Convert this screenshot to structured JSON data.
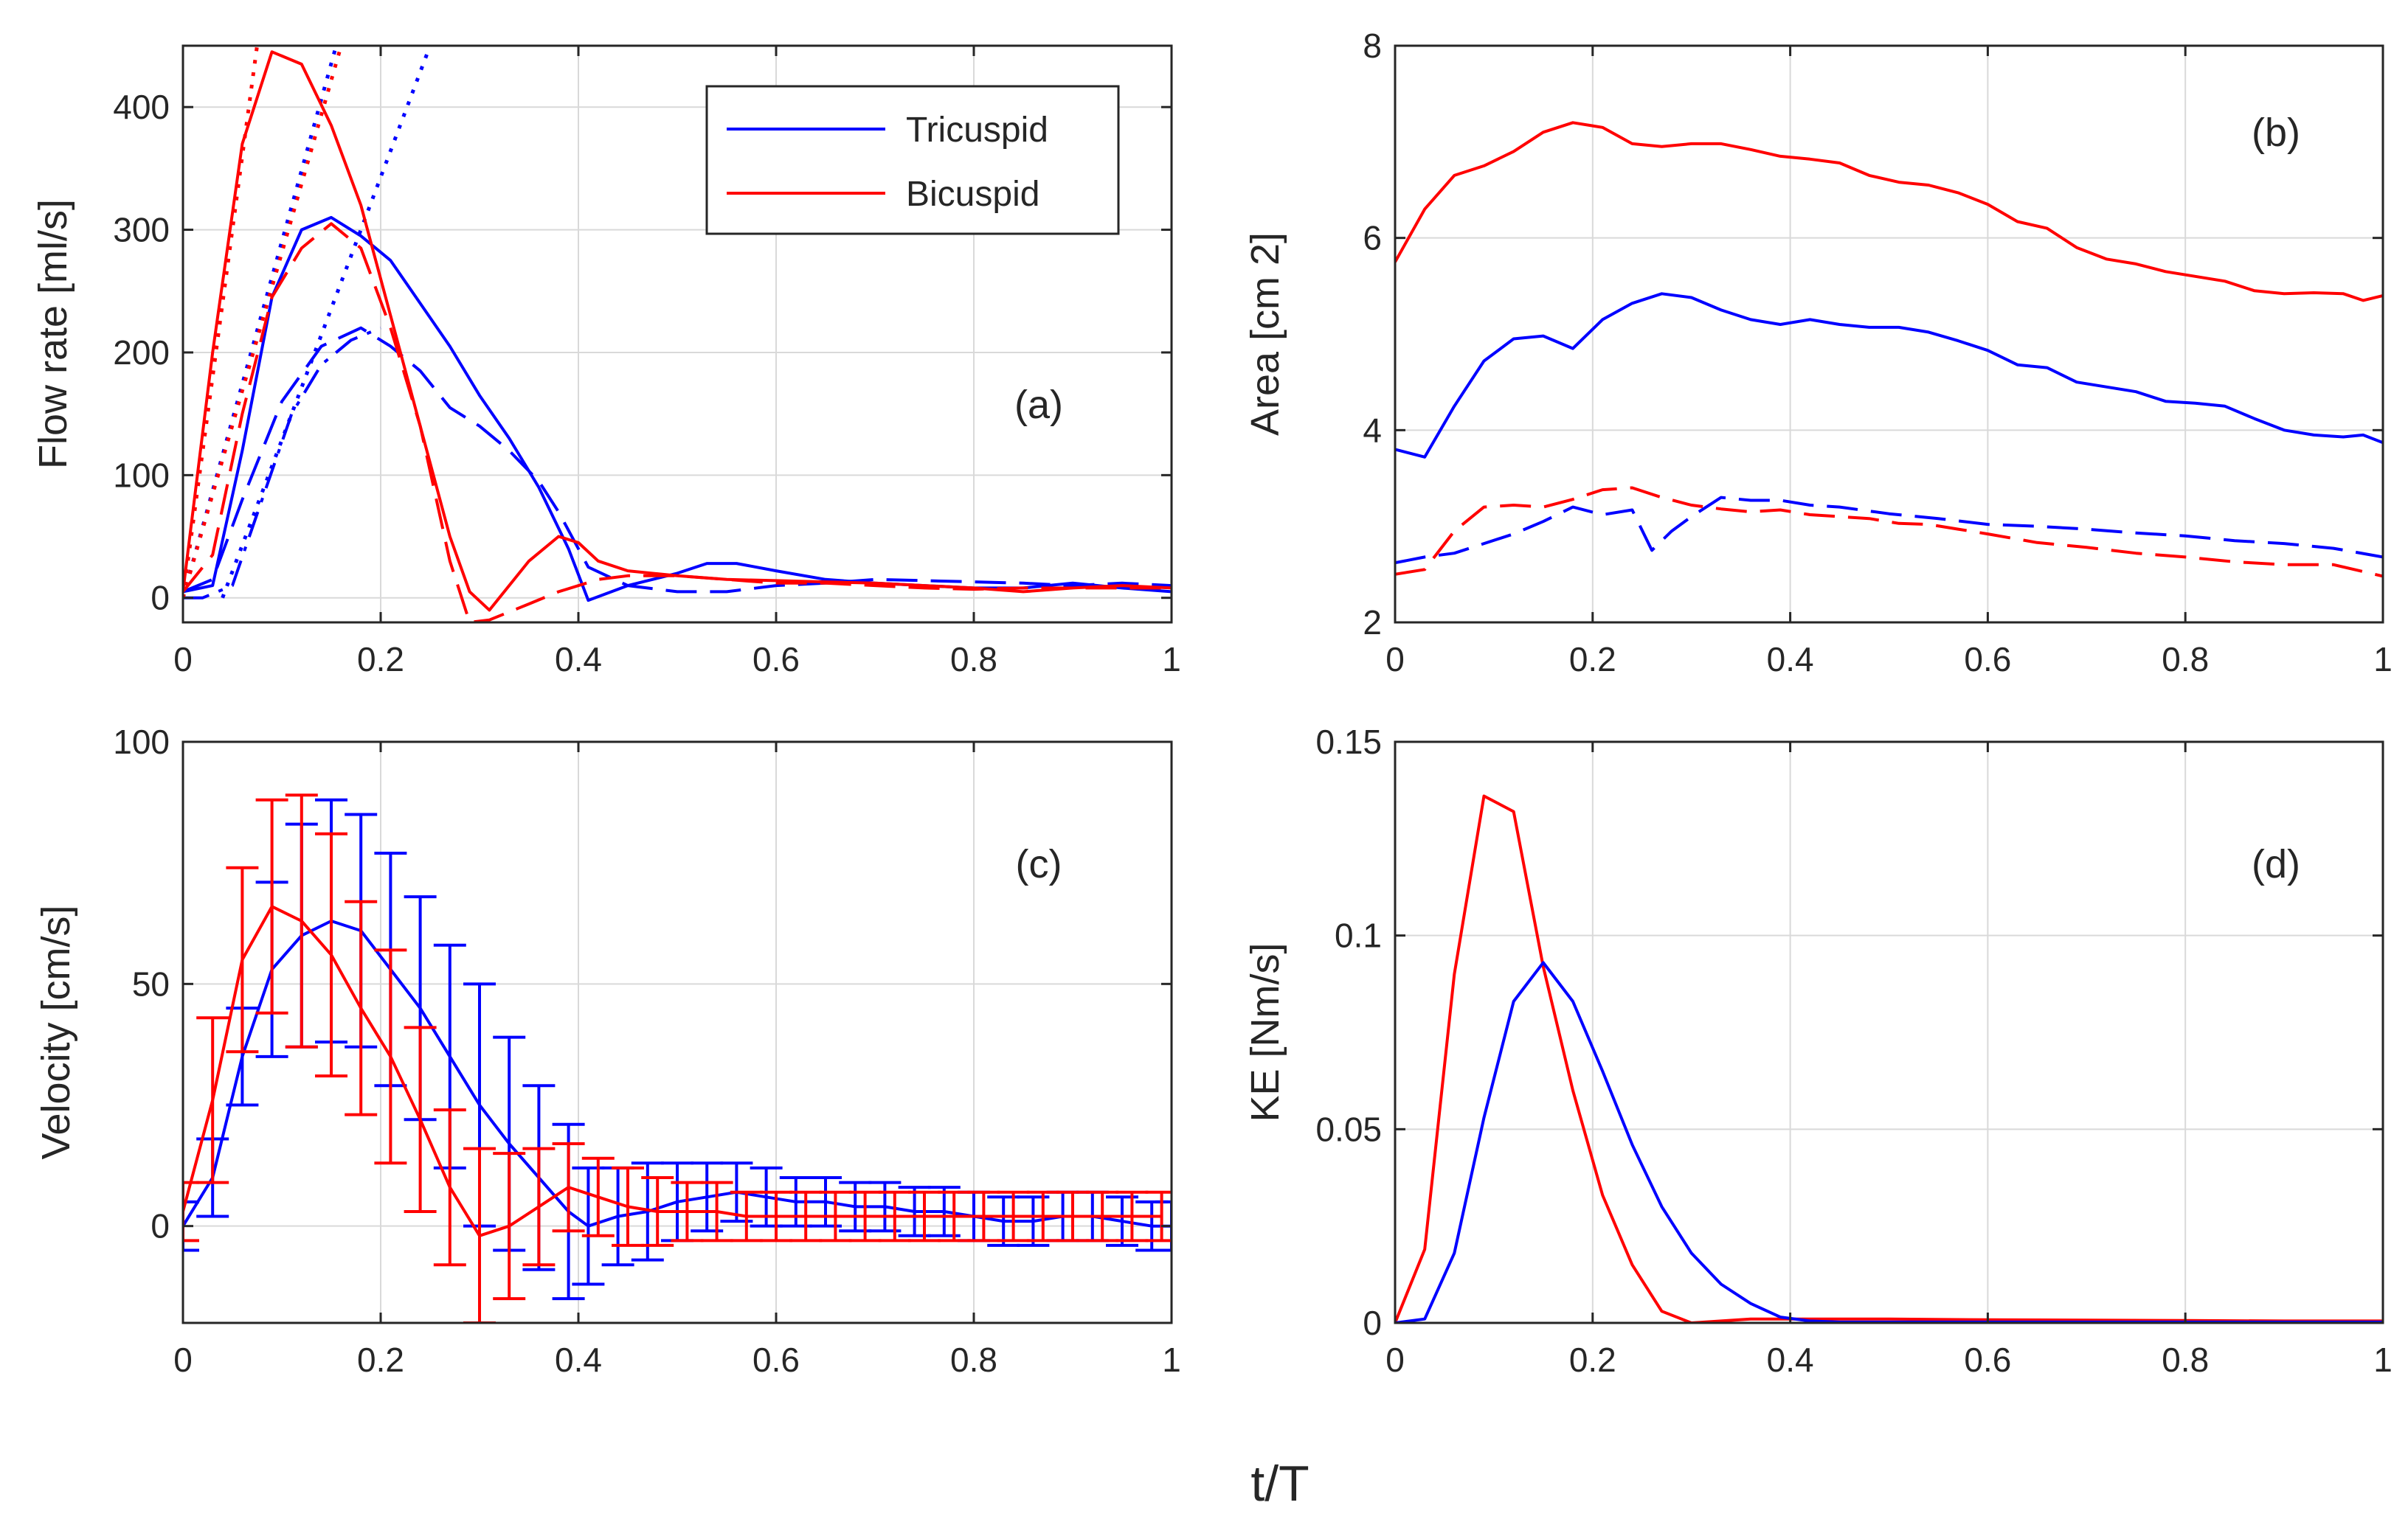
{
  "figure": {
    "xlabel": "t/T",
    "colors": {
      "tricuspid": "#0000ff",
      "bicuspid": "#ff0000",
      "axis": "#262626",
      "grid": "#d9d9d9"
    },
    "legend": {
      "placement": "top-right of panel (a)",
      "entries": [
        "Tricuspid",
        "Bicuspid"
      ]
    }
  },
  "chart_data": [
    {
      "id": "a",
      "type": "line",
      "panel_label": "(a)",
      "ylabel": "Flow rate [ml/s]",
      "xlim": [
        0,
        1
      ],
      "ylim": [
        -20,
        450
      ],
      "xticks": [
        0,
        0.2,
        0.4,
        0.6,
        0.8,
        1
      ],
      "xticklabels": [
        "0",
        "0.2",
        "0.4",
        "0.6",
        "0.8",
        "1"
      ],
      "yticks": [
        0,
        100,
        200,
        300,
        400
      ],
      "yticklabels": [
        "0",
        "100",
        "200",
        "300",
        "400"
      ],
      "grid": true,
      "series": [
        {
          "name": "Tricuspid",
          "color": "tricuspid",
          "style": "solid",
          "x": [
            0,
            0.03,
            0.06,
            0.09,
            0.12,
            0.15,
            0.18,
            0.21,
            0.24,
            0.27,
            0.3,
            0.33,
            0.36,
            0.39,
            0.41,
            0.45,
            0.5,
            0.53,
            0.56,
            0.6,
            0.65,
            0.7,
            0.75,
            0.8,
            0.85,
            0.9,
            0.95,
            1
          ],
          "y": [
            5,
            10,
            120,
            245,
            300,
            310,
            295,
            275,
            240,
            205,
            165,
            130,
            90,
            40,
            -2,
            10,
            20,
            28,
            28,
            22,
            15,
            12,
            10,
            8,
            8,
            12,
            8,
            5
          ]
        },
        {
          "name": "Tricuspid (dashed)",
          "color": "tricuspid",
          "style": "dashed",
          "x": [
            0,
            0.03,
            0.06,
            0.1,
            0.14,
            0.18,
            0.21,
            0.24,
            0.27,
            0.3,
            0.33,
            0.36,
            0.38,
            0.41,
            0.45,
            0.5,
            0.55,
            0.6,
            0.65,
            0.7,
            0.75,
            0.8,
            0.85,
            0.9,
            0.95,
            1
          ],
          "y": [
            5,
            15,
            80,
            160,
            205,
            220,
            205,
            185,
            155,
            140,
            120,
            95,
            70,
            25,
            10,
            5,
            5,
            10,
            12,
            15,
            14,
            13,
            12,
            10,
            12,
            10
          ]
        },
        {
          "name": "Tricuspid (dash-dot)",
          "color": "tricuspid",
          "style": "dashdot",
          "x": [
            0,
            0.02,
            0.05,
            0.08,
            0.11,
            0.14,
            0.17,
            0.2
          ],
          "y": [
            0,
            0,
            10,
            80,
            150,
            190,
            210,
            220
          ]
        },
        {
          "name": "Tricuspid (dotted tangent 1)",
          "color": "tricuspid",
          "style": "dotted",
          "x": [
            0,
            0.155
          ],
          "y": [
            0,
            450
          ]
        },
        {
          "name": "Tricuspid (dotted tangent 2)",
          "color": "tricuspid",
          "style": "dotted",
          "x": [
            0.04,
            0.25
          ],
          "y": [
            0,
            450
          ]
        },
        {
          "name": "Bicuspid",
          "color": "bicuspid",
          "style": "solid",
          "x": [
            0,
            0.03,
            0.06,
            0.09,
            0.12,
            0.15,
            0.18,
            0.21,
            0.24,
            0.27,
            0.29,
            0.31,
            0.35,
            0.38,
            0.4,
            0.42,
            0.45,
            0.5,
            0.55,
            0.6,
            0.65,
            0.7,
            0.75,
            0.8,
            0.85,
            0.9,
            0.95,
            1
          ],
          "y": [
            5,
            200,
            370,
            445,
            435,
            385,
            320,
            230,
            140,
            50,
            5,
            -10,
            30,
            50,
            45,
            30,
            22,
            18,
            15,
            14,
            13,
            12,
            10,
            8,
            5,
            8,
            10,
            8
          ]
        },
        {
          "name": "Bicuspid (dashed)",
          "color": "bicuspid",
          "style": "dashed",
          "x": [
            0,
            0.03,
            0.06,
            0.09,
            0.12,
            0.15,
            0.18,
            0.21,
            0.24,
            0.27,
            0.29,
            0.31,
            0.35,
            0.38,
            0.42,
            0.45,
            0.5,
            0.55,
            0.6,
            0.65,
            0.7,
            0.75,
            0.8,
            0.85,
            0.9,
            0.95,
            1
          ],
          "y": [
            5,
            35,
            150,
            245,
            285,
            305,
            285,
            220,
            140,
            30,
            -20,
            -18,
            -5,
            5,
            15,
            18,
            18,
            15,
            12,
            12,
            10,
            8,
            7,
            8,
            8,
            8,
            8
          ]
        },
        {
          "name": "Bicuspid (dotted tangent 1)",
          "color": "bicuspid",
          "style": "dotted",
          "x": [
            0,
            0.075
          ],
          "y": [
            0,
            450
          ]
        },
        {
          "name": "Bicuspid (dotted tangent 2)",
          "color": "bicuspid",
          "style": "dotted",
          "x": [
            0,
            0.16
          ],
          "y": [
            0,
            450
          ]
        }
      ]
    },
    {
      "id": "b",
      "type": "line",
      "panel_label": "(b)",
      "ylabel": "Area [cm 2]",
      "xlim": [
        0,
        1
      ],
      "ylim": [
        2,
        8
      ],
      "xticks": [
        0,
        0.2,
        0.4,
        0.6,
        0.8,
        1
      ],
      "xticklabels": [
        "0",
        "0.2",
        "0.4",
        "0.6",
        "0.8",
        "1"
      ],
      "yticks": [
        2,
        4,
        6,
        8
      ],
      "yticklabels": [
        "2",
        "4",
        "6",
        "8"
      ],
      "grid": true,
      "series": [
        {
          "name": "Bicuspid",
          "color": "bicuspid",
          "style": "solid",
          "x": [
            0,
            0.03,
            0.06,
            0.09,
            0.12,
            0.15,
            0.18,
            0.21,
            0.24,
            0.27,
            0.3,
            0.33,
            0.36,
            0.39,
            0.42,
            0.45,
            0.48,
            0.51,
            0.54,
            0.57,
            0.6,
            0.63,
            0.66,
            0.69,
            0.72,
            0.75,
            0.78,
            0.81,
            0.84,
            0.87,
            0.9,
            0.93,
            0.96,
            0.98,
            1
          ],
          "y": [
            5.75,
            6.3,
            6.65,
            6.75,
            6.9,
            7.1,
            7.2,
            7.15,
            6.98,
            6.95,
            6.98,
            6.98,
            6.92,
            6.85,
            6.82,
            6.78,
            6.65,
            6.58,
            6.55,
            6.47,
            6.35,
            6.17,
            6.1,
            5.9,
            5.78,
            5.73,
            5.65,
            5.6,
            5.55,
            5.45,
            5.42,
            5.43,
            5.42,
            5.35,
            5.4
          ]
        },
        {
          "name": "Tricuspid",
          "color": "tricuspid",
          "style": "solid",
          "x": [
            0,
            0.03,
            0.06,
            0.09,
            0.12,
            0.15,
            0.18,
            0.21,
            0.24,
            0.27,
            0.3,
            0.33,
            0.36,
            0.39,
            0.42,
            0.45,
            0.48,
            0.51,
            0.54,
            0.57,
            0.6,
            0.63,
            0.66,
            0.69,
            0.72,
            0.75,
            0.78,
            0.81,
            0.84,
            0.87,
            0.9,
            0.93,
            0.96,
            0.98,
            1
          ],
          "y": [
            3.8,
            3.72,
            4.25,
            4.72,
            4.95,
            4.98,
            4.85,
            5.15,
            5.32,
            5.42,
            5.38,
            5.25,
            5.15,
            5.1,
            5.15,
            5.1,
            5.07,
            5.07,
            5.02,
            4.93,
            4.83,
            4.68,
            4.65,
            4.5,
            4.45,
            4.4,
            4.3,
            4.28,
            4.25,
            4.12,
            4.0,
            3.95,
            3.93,
            3.95,
            3.87
          ]
        },
        {
          "name": "Tricuspid (dashed)",
          "color": "tricuspid",
          "style": "dashed",
          "x": [
            0,
            0.03,
            0.06,
            0.09,
            0.12,
            0.15,
            0.18,
            0.21,
            0.24,
            0.26,
            0.28,
            0.3,
            0.33,
            0.36,
            0.39,
            0.42,
            0.45,
            0.5,
            0.55,
            0.6,
            0.65,
            0.7,
            0.75,
            0.8,
            0.85,
            0.9,
            0.95,
            1
          ],
          "y": [
            2.62,
            2.68,
            2.72,
            2.82,
            2.92,
            3.05,
            3.2,
            3.12,
            3.17,
            2.75,
            2.95,
            3.1,
            3.3,
            3.27,
            3.27,
            3.22,
            3.2,
            3.13,
            3.08,
            3.02,
            3.0,
            2.97,
            2.93,
            2.9,
            2.85,
            2.82,
            2.77,
            2.68
          ]
        },
        {
          "name": "Bicuspid (dashed)",
          "color": "bicuspid",
          "style": "dashed",
          "x": [
            0,
            0.03,
            0.06,
            0.09,
            0.12,
            0.15,
            0.18,
            0.21,
            0.24,
            0.27,
            0.3,
            0.33,
            0.36,
            0.39,
            0.42,
            0.45,
            0.48,
            0.51,
            0.54,
            0.57,
            0.6,
            0.65,
            0.7,
            0.75,
            0.8,
            0.85,
            0.9,
            0.95,
            1
          ],
          "y": [
            2.5,
            2.55,
            2.95,
            3.2,
            3.22,
            3.2,
            3.28,
            3.38,
            3.4,
            3.3,
            3.22,
            3.18,
            3.15,
            3.17,
            3.12,
            3.1,
            3.08,
            3.03,
            3.02,
            2.97,
            2.92,
            2.83,
            2.78,
            2.72,
            2.68,
            2.63,
            2.6,
            2.6,
            2.48
          ]
        }
      ]
    },
    {
      "id": "c",
      "type": "line",
      "panel_label": "(c)",
      "ylabel": "Velocity [cm/s]",
      "xlim": [
        0,
        1
      ],
      "ylim": [
        -20,
        100
      ],
      "xticks": [
        0,
        0.2,
        0.4,
        0.6,
        0.8,
        1
      ],
      "xticklabels": [
        "0",
        "0.2",
        "0.4",
        "0.6",
        "0.8",
        "1"
      ],
      "yticks": [
        0,
        50,
        100
      ],
      "yticklabels": [
        "0",
        "50",
        "100"
      ],
      "grid": true,
      "series": [
        {
          "name": "Tricuspid",
          "color": "tricuspid",
          "style": "solid",
          "x": [
            0,
            0.03,
            0.06,
            0.09,
            0.12,
            0.15,
            0.18,
            0.21,
            0.24,
            0.27,
            0.3,
            0.33,
            0.36,
            0.39,
            0.41,
            0.44,
            0.47,
            0.5,
            0.53,
            0.56,
            0.59,
            0.62,
            0.65,
            0.68,
            0.71,
            0.74,
            0.77,
            0.8,
            0.83,
            0.86,
            0.89,
            0.92,
            0.95,
            0.98,
            1
          ],
          "y": [
            0,
            10,
            35,
            53,
            60,
            63,
            61,
            53,
            45,
            35,
            25,
            17,
            10,
            3,
            0,
            2,
            3,
            5,
            6,
            7,
            6,
            5,
            5,
            4,
            4,
            3,
            3,
            2,
            1,
            1,
            2,
            2,
            1,
            0,
            0
          ],
          "err": [
            5,
            8,
            10,
            18,
            23,
            25,
            24,
            24,
            23,
            23,
            25,
            22,
            19,
            18,
            12,
            10,
            10,
            8,
            7,
            6,
            6,
            5,
            5,
            5,
            5,
            5,
            5,
            5,
            5,
            5,
            5,
            5,
            5,
            5,
            5
          ]
        },
        {
          "name": "Bicuspid",
          "color": "bicuspid",
          "style": "solid",
          "x": [
            0,
            0.03,
            0.06,
            0.09,
            0.12,
            0.15,
            0.18,
            0.21,
            0.24,
            0.27,
            0.3,
            0.33,
            0.36,
            0.39,
            0.42,
            0.45,
            0.48,
            0.51,
            0.54,
            0.57,
            0.6,
            0.63,
            0.66,
            0.69,
            0.72,
            0.75,
            0.78,
            0.81,
            0.84,
            0.87,
            0.9,
            0.93,
            0.96,
            0.99
          ],
          "y": [
            3,
            26,
            55,
            66,
            63,
            56,
            45,
            35,
            22,
            8,
            -2,
            0,
            4,
            8,
            6,
            4,
            3,
            3,
            3,
            2,
            2,
            2,
            2,
            2,
            2,
            2,
            2,
            2,
            2,
            2,
            2,
            2,
            2,
            2
          ],
          "err": [
            6,
            17,
            19,
            22,
            26,
            25,
            22,
            22,
            19,
            16,
            18,
            15,
            12,
            9,
            8,
            8,
            7,
            6,
            6,
            5,
            5,
            5,
            5,
            5,
            5,
            5,
            5,
            5,
            5,
            5,
            5,
            5,
            5,
            5
          ]
        }
      ]
    },
    {
      "id": "d",
      "type": "line",
      "panel_label": "(d)",
      "ylabel": "KE [Nm/s]",
      "xlim": [
        0,
        1
      ],
      "ylim": [
        0,
        0.15
      ],
      "xticks": [
        0,
        0.2,
        0.4,
        0.6,
        0.8,
        1
      ],
      "xticklabels": [
        "0",
        "0.2",
        "0.4",
        "0.6",
        "0.8",
        "1"
      ],
      "yticks": [
        0,
        0.05,
        0.1,
        0.15
      ],
      "yticklabels": [
        "0",
        "0.05",
        "0.1",
        "0.15"
      ],
      "grid": true,
      "series": [
        {
          "name": "Bicuspid",
          "color": "bicuspid",
          "style": "solid",
          "x": [
            0,
            0.03,
            0.06,
            0.09,
            0.12,
            0.15,
            0.18,
            0.21,
            0.24,
            0.27,
            0.3,
            0.33,
            0.36,
            0.39,
            0.42,
            0.5,
            0.6,
            0.7,
            0.8,
            0.9,
            1
          ],
          "y": [
            0.0,
            0.019,
            0.09,
            0.136,
            0.132,
            0.092,
            0.06,
            0.033,
            0.015,
            0.003,
            0.0,
            0.0005,
            0.001,
            0.001,
            0.001,
            0.001,
            0.0008,
            0.0007,
            0.0006,
            0.0005,
            0.0005
          ]
        },
        {
          "name": "Tricuspid",
          "color": "tricuspid",
          "style": "solid",
          "x": [
            0,
            0.03,
            0.06,
            0.09,
            0.12,
            0.15,
            0.18,
            0.21,
            0.24,
            0.27,
            0.3,
            0.33,
            0.36,
            0.39,
            0.42,
            0.45,
            0.5,
            0.6,
            0.7,
            0.8,
            0.9,
            1
          ],
          "y": [
            0.0,
            0.001,
            0.018,
            0.053,
            0.083,
            0.093,
            0.083,
            0.065,
            0.046,
            0.03,
            0.018,
            0.01,
            0.005,
            0.0015,
            0.0005,
            0.0002,
            0.0002,
            0.0002,
            0.0002,
            0.0002,
            0.0002,
            0.0002
          ]
        }
      ]
    }
  ]
}
